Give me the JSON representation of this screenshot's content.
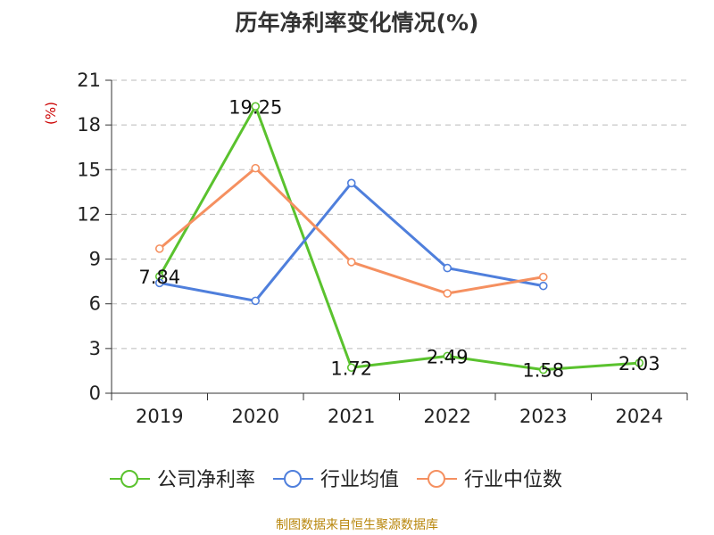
{
  "title": "历年净利率变化情况(%)",
  "source_note": "制图数据来自恒生聚源数据库",
  "chart_data": {
    "type": "line",
    "title": "历年净利率变化情况(%)",
    "ylabel": "(%)",
    "ylim": [
      0,
      21
    ],
    "yticks": [
      0,
      3,
      6,
      9,
      12,
      15,
      18,
      21
    ],
    "categories": [
      "2019",
      "2020",
      "2021",
      "2022",
      "2023",
      "2024"
    ],
    "grid": true,
    "legend_position": "bottom",
    "series": [
      {
        "name": "公司净利率",
        "color": "#5ac22e",
        "values": [
          7.84,
          19.25,
          1.72,
          2.49,
          1.58,
          2.03
        ],
        "labels": true
      },
      {
        "name": "行业均值",
        "color": "#4f7fdc",
        "values": [
          7.4,
          6.2,
          14.1,
          8.4,
          7.2,
          null
        ],
        "labels": false
      },
      {
        "name": "行业中位数",
        "color": "#f59060",
        "values": [
          9.7,
          15.1,
          8.8,
          6.7,
          7.8,
          null
        ],
        "labels": false
      }
    ]
  }
}
